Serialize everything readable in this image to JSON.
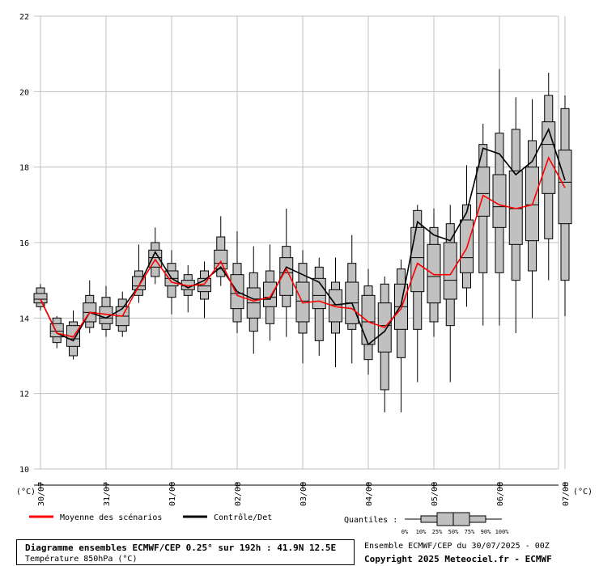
{
  "title": "Diagramme ensembles ECMWF/CEP 0.25° sur 192h : 41.9N 12.5E",
  "subtitle": "Température 850hPa (°C)",
  "source_line": "Ensemble ECMWF/CEP du 30/07/2025 - 00Z",
  "copyright": "Copyright 2025 Meteociel.fr - ECMWF",
  "unit_left": "(°C)",
  "unit_right": "(°C)",
  "legend": {
    "mean_label": "Moyenne des scénarios",
    "control_label": "Contrôle/Det",
    "quantiles_label": "Quantiles :",
    "quantile_ticks": [
      "0%",
      "10%",
      "25%",
      "50%",
      "75%",
      "90%",
      "100%"
    ]
  },
  "colors": {
    "mean": "#ff0000",
    "control": "#000000",
    "box_fill": "#c0c0c0",
    "grid": "#c0c0c0"
  },
  "chart_data": {
    "type": "boxplot",
    "x_tick_labels": [
      "30/07",
      "31/07",
      "01/08",
      "02/08",
      "03/08",
      "04/08",
      "05/08",
      "06/08",
      "07/08"
    ],
    "y_ticks": [
      10,
      12,
      14,
      16,
      18,
      20,
      22
    ],
    "ylim": [
      10,
      22
    ],
    "grid": true,
    "step_hours": 6,
    "steps": [
      {
        "time": "30/07 00Z",
        "min": 14.2,
        "p10": 14.3,
        "p25": 14.4,
        "median": 14.5,
        "p75": 14.65,
        "p90": 14.8,
        "max": 14.9,
        "mean": 14.5,
        "control": 14.5
      },
      {
        "time": "30/07 06Z",
        "min": 13.2,
        "p10": 13.35,
        "p25": 13.5,
        "median": 13.65,
        "p75": 13.85,
        "p90": 14.0,
        "max": 14.05,
        "mean": 13.6,
        "control": 13.6
      },
      {
        "time": "30/07 12Z",
        "min": 12.9,
        "p10": 13.0,
        "p25": 13.25,
        "median": 13.45,
        "p75": 13.8,
        "p90": 13.9,
        "max": 14.2,
        "mean": 13.5,
        "control": 13.4
      },
      {
        "time": "30/07 18Z",
        "min": 13.6,
        "p10": 13.75,
        "p25": 13.9,
        "median": 14.15,
        "p75": 14.4,
        "p90": 14.6,
        "max": 15.0,
        "mean": 14.15,
        "control": 14.15
      },
      {
        "time": "31/07 00Z",
        "min": 13.5,
        "p10": 13.7,
        "p25": 13.85,
        "median": 14.0,
        "p75": 14.3,
        "p90": 14.55,
        "max": 14.85,
        "mean": 14.1,
        "control": 14.0
      },
      {
        "time": "31/07 06Z",
        "min": 13.5,
        "p10": 13.65,
        "p25": 13.8,
        "median": 14.05,
        "p75": 14.3,
        "p90": 14.5,
        "max": 14.7,
        "mean": 14.05,
        "control": 14.25
      },
      {
        "time": "31/07 12Z",
        "min": 14.4,
        "p10": 14.6,
        "p25": 14.75,
        "median": 14.85,
        "p75": 15.1,
        "p90": 15.25,
        "max": 15.95,
        "mean": 14.85,
        "control": 14.85
      },
      {
        "time": "31/07 18Z",
        "min": 14.9,
        "p10": 15.1,
        "p25": 15.35,
        "median": 15.6,
        "p75": 15.8,
        "p90": 16.0,
        "max": 16.4,
        "mean": 15.55,
        "control": 15.75
      },
      {
        "time": "01/08 00Z",
        "min": 14.1,
        "p10": 14.55,
        "p25": 14.85,
        "median": 15.05,
        "p75": 15.25,
        "p90": 15.45,
        "max": 15.8,
        "mean": 14.95,
        "control": 15.05
      },
      {
        "time": "01/08 06Z",
        "min": 14.15,
        "p10": 14.6,
        "p25": 14.75,
        "median": 14.85,
        "p75": 15.0,
        "p90": 15.15,
        "max": 15.4,
        "mean": 14.85,
        "control": 14.8
      },
      {
        "time": "01/08 12Z",
        "min": 14.0,
        "p10": 14.5,
        "p25": 14.7,
        "median": 14.85,
        "p75": 15.05,
        "p90": 15.25,
        "max": 15.5,
        "mean": 14.9,
        "control": 15.0
      },
      {
        "time": "01/08 18Z",
        "min": 14.85,
        "p10": 15.1,
        "p25": 15.3,
        "median": 15.45,
        "p75": 15.8,
        "p90": 16.15,
        "max": 16.7,
        "mean": 15.5,
        "control": 15.35
      },
      {
        "time": "02/08 00Z",
        "min": 13.6,
        "p10": 13.9,
        "p25": 14.25,
        "median": 14.65,
        "p75": 15.15,
        "p90": 15.45,
        "max": 16.3,
        "mean": 14.6,
        "control": 14.7
      },
      {
        "time": "02/08 06Z",
        "min": 13.05,
        "p10": 13.65,
        "p25": 14.0,
        "median": 14.4,
        "p75": 14.8,
        "p90": 15.2,
        "max": 15.9,
        "mean": 14.45,
        "control": 14.5
      },
      {
        "time": "02/08 12Z",
        "min": 13.4,
        "p10": 13.85,
        "p25": 14.3,
        "median": 14.55,
        "p75": 14.95,
        "p90": 15.25,
        "max": 15.95,
        "mean": 14.55,
        "control": 14.5
      },
      {
        "time": "02/08 18Z",
        "min": 13.5,
        "p10": 14.3,
        "p25": 14.6,
        "median": 15.2,
        "p75": 15.6,
        "p90": 15.9,
        "max": 16.9,
        "mean": 15.3,
        "control": 15.35
      },
      {
        "time": "03/08 00Z",
        "min": 12.8,
        "p10": 13.6,
        "p25": 13.9,
        "median": 14.45,
        "p75": 14.95,
        "p90": 15.45,
        "max": 15.8,
        "mean": 14.4,
        "control": 15.15
      },
      {
        "time": "03/08 06Z",
        "min": 13.0,
        "p10": 13.4,
        "p25": 14.25,
        "median": 14.6,
        "p75": 15.05,
        "p90": 15.35,
        "max": 15.6,
        "mean": 14.45,
        "control": 14.95
      },
      {
        "time": "03/08 12Z",
        "min": 12.7,
        "p10": 13.6,
        "p25": 13.9,
        "median": 14.35,
        "p75": 14.75,
        "p90": 14.95,
        "max": 15.6,
        "mean": 14.3,
        "control": 14.35
      },
      {
        "time": "03/08 18Z",
        "min": 12.8,
        "p10": 13.7,
        "p25": 13.85,
        "median": 14.4,
        "p75": 14.95,
        "p90": 15.45,
        "max": 16.2,
        "mean": 14.25,
        "control": 14.4
      },
      {
        "time": "04/08 00Z",
        "min": 12.5,
        "p10": 12.9,
        "p25": 13.3,
        "median": 13.9,
        "p75": 14.6,
        "p90": 14.85,
        "max": 15.3,
        "mean": 13.9,
        "control": 13.3
      },
      {
        "time": "04/08 06Z",
        "min": 11.5,
        "p10": 12.1,
        "p25": 13.1,
        "median": 13.8,
        "p75": 14.4,
        "p90": 14.9,
        "max": 15.1,
        "mean": 13.75,
        "control": 13.65
      },
      {
        "time": "04/08 12Z",
        "min": 11.5,
        "p10": 12.95,
        "p25": 13.7,
        "median": 14.3,
        "p75": 14.9,
        "p90": 15.3,
        "max": 15.55,
        "mean": 14.25,
        "control": 14.35
      },
      {
        "time": "04/08 18Z",
        "min": 12.3,
        "p10": 13.7,
        "p25": 14.7,
        "median": 15.6,
        "p75": 16.4,
        "p90": 16.85,
        "max": 17.0,
        "mean": 15.45,
        "control": 16.55
      },
      {
        "time": "05/08 00Z",
        "min": 13.5,
        "p10": 13.9,
        "p25": 14.4,
        "median": 15.1,
        "p75": 15.95,
        "p90": 16.4,
        "max": 16.9,
        "mean": 15.15,
        "control": 16.2
      },
      {
        "time": "05/08 06Z",
        "min": 12.3,
        "p10": 13.8,
        "p25": 14.5,
        "median": 15.0,
        "p75": 16.0,
        "p90": 16.5,
        "max": 17.0,
        "mean": 15.15,
        "control": 16.05
      },
      {
        "time": "05/08 12Z",
        "min": 14.3,
        "p10": 14.8,
        "p25": 15.2,
        "median": 15.6,
        "p75": 16.6,
        "p90": 17.0,
        "max": 18.05,
        "mean": 15.85,
        "control": 16.8
      },
      {
        "time": "05/08 18Z",
        "min": 13.8,
        "p10": 15.2,
        "p25": 16.7,
        "median": 17.3,
        "p75": 18.0,
        "p90": 18.6,
        "max": 19.15,
        "mean": 17.25,
        "control": 18.5
      },
      {
        "time": "06/08 00Z",
        "min": 13.8,
        "p10": 15.2,
        "p25": 16.4,
        "median": 16.95,
        "p75": 17.8,
        "p90": 18.9,
        "max": 20.6,
        "mean": 17.0,
        "control": 18.35
      },
      {
        "time": "06/08 06Z",
        "min": 13.6,
        "p10": 15.0,
        "p25": 15.95,
        "median": 16.9,
        "p75": 17.9,
        "p90": 19.0,
        "max": 19.85,
        "mean": 16.9,
        "control": 17.8
      },
      {
        "time": "06/08 12Z",
        "min": 14.0,
        "p10": 15.25,
        "p25": 16.05,
        "median": 17.0,
        "p75": 18.0,
        "p90": 18.7,
        "max": 19.8,
        "mean": 17.0,
        "control": 18.15
      },
      {
        "time": "06/08 18Z",
        "min": 15.0,
        "p10": 16.1,
        "p25": 17.3,
        "median": 18.6,
        "p75": 19.2,
        "p90": 19.9,
        "max": 20.5,
        "mean": 18.25,
        "control": 19.0
      },
      {
        "time": "07/08 00Z",
        "min": 14.05,
        "p10": 15.0,
        "p25": 16.5,
        "median": 17.6,
        "p75": 18.45,
        "p90": 19.55,
        "max": 19.9,
        "mean": 17.45,
        "control": 17.65
      }
    ]
  }
}
